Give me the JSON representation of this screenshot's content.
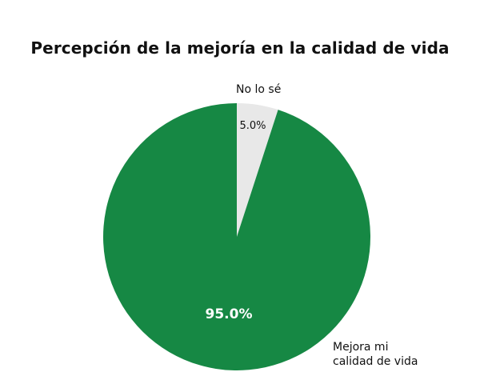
{
  "chart_data": {
    "type": "pie",
    "title": "Percepción de la mejoría en la calidad de vida",
    "slices": [
      {
        "label": "No lo sé",
        "value": 5.0,
        "display": "5.0%",
        "color": "#e8e8e8"
      },
      {
        "label": "Mejora mi calidad de vida",
        "label_lines": [
          "Mejora mi",
          "calidad de vida"
        ],
        "value": 95.0,
        "display": "95.0%",
        "color": "#168844"
      }
    ],
    "start_angle_deg": 0,
    "direction": "clockwise",
    "legend": "none"
  }
}
